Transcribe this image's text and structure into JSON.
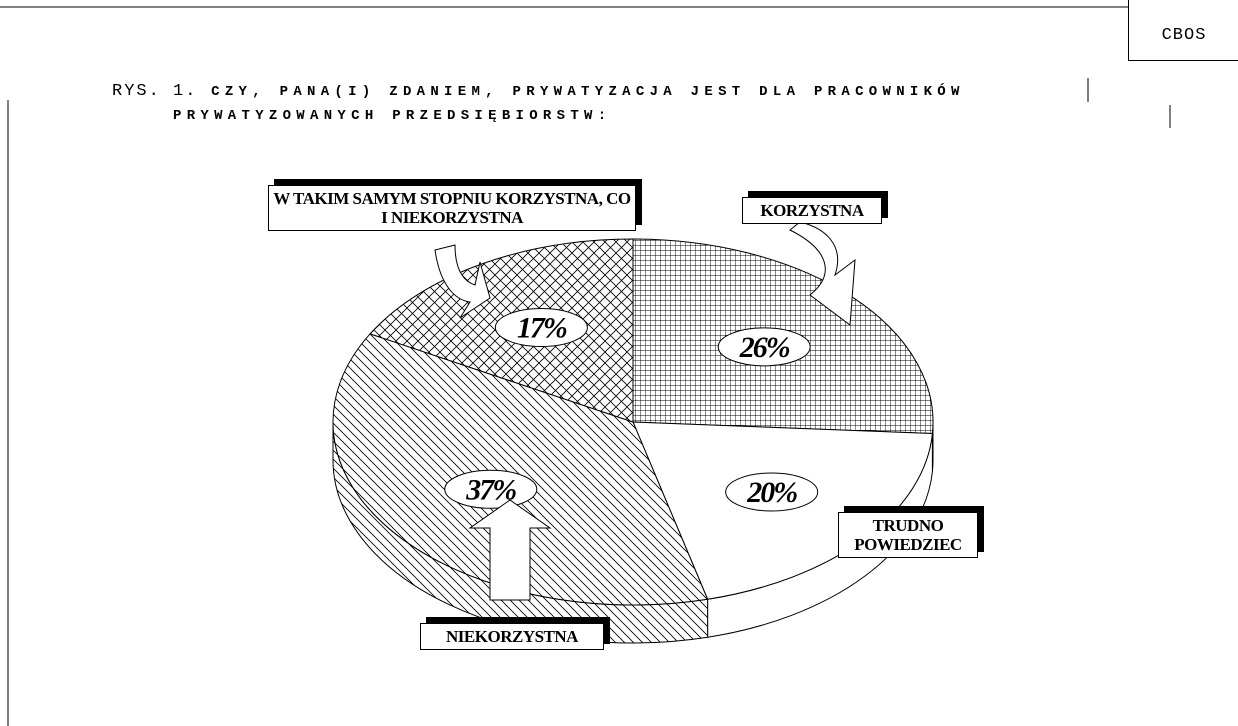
{
  "header": "CBOS",
  "chart_data": {
    "type": "pie",
    "figure_label": "RYS. 1.",
    "title": "CZY, PANA(I) ZDANIEM, PRYWATYZACJA JEST DLA PRACOWNIKÓW PRYWATYZOWANYCH PRZEDSIĘBIORSTW:",
    "categories": [
      "KORZYSTNA",
      "TRUDNO POWIEDZIEC",
      "NIEKORZYSTNA",
      "W TAKIM SAMYM STOPNIU KORZYSTNA, CO I NIEKORZYSTNA"
    ],
    "values": [
      26,
      20,
      37,
      17
    ],
    "value_labels": [
      "26%",
      "20%",
      "37%",
      "17%"
    ],
    "patterns": [
      "grid",
      "none",
      "diagonal",
      "crosshatch"
    ]
  }
}
